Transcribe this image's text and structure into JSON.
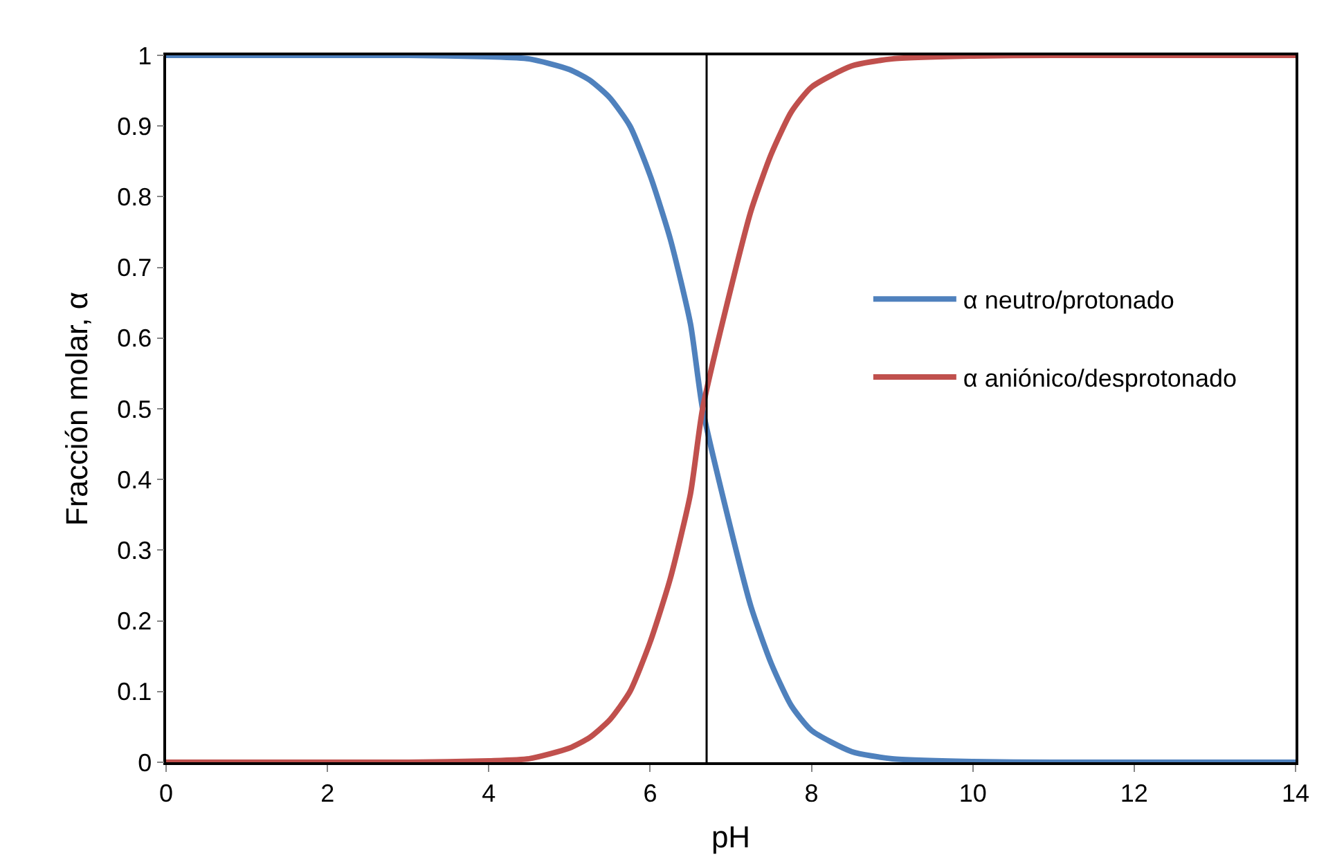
{
  "chart_data": {
    "type": "line",
    "xlabel": "pH",
    "ylabel": "Fracción molar, α",
    "x": [
      0,
      1,
      2,
      3,
      4,
      4.5,
      5,
      5.25,
      5.5,
      5.75,
      6,
      6.25,
      6.5,
      6.65,
      7,
      7.25,
      7.5,
      7.75,
      8,
      8.5,
      9,
      10,
      11,
      12,
      13,
      14
    ],
    "series": [
      {
        "name": "α neutro/protonado",
        "color": "#4f81bd",
        "values": [
          1,
          1,
          1,
          1,
          0.998,
          0.995,
          0.98,
          0.965,
          0.94,
          0.9,
          0.83,
          0.74,
          0.62,
          0.5,
          0.33,
          0.22,
          0.14,
          0.08,
          0.045,
          0.015,
          0.005,
          0.001,
          0,
          0,
          0,
          0
        ]
      },
      {
        "name": "α aniónico/desprotonado",
        "color": "#c0504d",
        "values": [
          0,
          0,
          0,
          0,
          0.002,
          0.005,
          0.02,
          0.035,
          0.06,
          0.1,
          0.17,
          0.26,
          0.38,
          0.5,
          0.67,
          0.78,
          0.86,
          0.92,
          0.955,
          0.985,
          0.995,
          0.999,
          1,
          1,
          1,
          1
        ]
      }
    ],
    "xlim": [
      0,
      14
    ],
    "xticks": [
      0,
      2,
      4,
      6,
      8,
      10,
      12,
      14
    ],
    "ylim": [
      0,
      1
    ],
    "yticks": [
      0,
      0.1,
      0.2,
      0.3,
      0.4,
      0.5,
      0.6,
      0.7,
      0.8,
      0.9,
      1
    ],
    "ref_lines": [
      {
        "axis": "x",
        "value": 6.7,
        "color": "#000000"
      }
    ],
    "legend": "right",
    "marker": "none",
    "line_style": "solid"
  }
}
